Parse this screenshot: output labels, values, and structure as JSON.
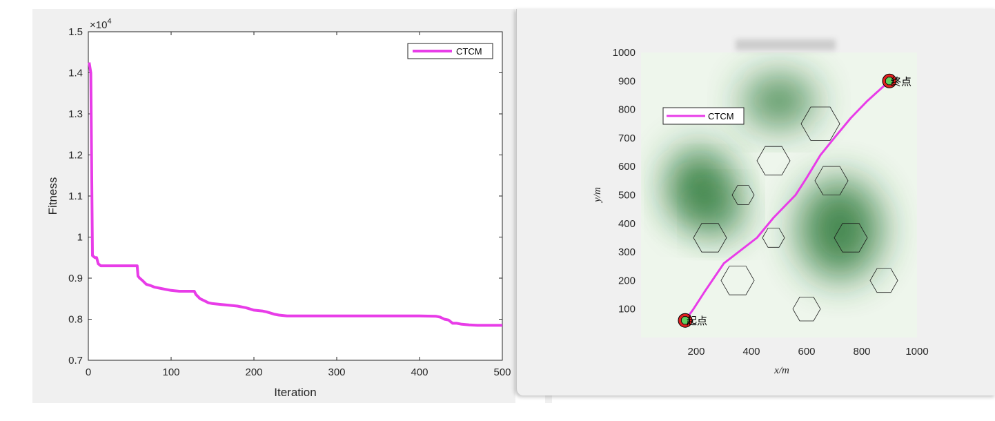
{
  "chart_data": [
    {
      "type": "line",
      "xlabel": "Iteration",
      "ylabel": "Fitness",
      "exponent_label": "×10",
      "exponent_power": "4",
      "xlim": [
        0,
        500
      ],
      "ylim": [
        0.7,
        1.5
      ],
      "xticks": [
        0,
        100,
        200,
        300,
        400,
        500
      ],
      "yticks": [
        0.7,
        0.8,
        0.9,
        1,
        1.1,
        1.2,
        1.3,
        1.4,
        1.5
      ],
      "ytick_labels": [
        "0.7",
        "0.8",
        "0.9",
        "1",
        "1.1",
        "1.2",
        "1.3",
        "1.4",
        "1.5"
      ],
      "legend_placement": "top-right",
      "series": [
        {
          "name": "CTCM",
          "color": "#e83ce8",
          "x": [
            1,
            3,
            5,
            8,
            10,
            12,
            15,
            25,
            40,
            55,
            59,
            60,
            62,
            65,
            70,
            75,
            80,
            90,
            100,
            110,
            128,
            130,
            135,
            140,
            145,
            150,
            160,
            170,
            180,
            190,
            195,
            200,
            210,
            215,
            220,
            225,
            230,
            240,
            260,
            300,
            350,
            400,
            420,
            425,
            430,
            435,
            440,
            445,
            450,
            460,
            470,
            480,
            490,
            500
          ],
          "y": [
            1.425,
            1.4,
            0.955,
            0.95,
            0.95,
            0.935,
            0.93,
            0.93,
            0.93,
            0.93,
            0.93,
            0.905,
            0.9,
            0.895,
            0.885,
            0.882,
            0.878,
            0.874,
            0.87,
            0.868,
            0.868,
            0.86,
            0.85,
            0.845,
            0.84,
            0.838,
            0.836,
            0.834,
            0.832,
            0.828,
            0.825,
            0.822,
            0.82,
            0.818,
            0.815,
            0.812,
            0.81,
            0.808,
            0.808,
            0.808,
            0.808,
            0.808,
            0.807,
            0.805,
            0.8,
            0.798,
            0.79,
            0.79,
            0.788,
            0.786,
            0.785,
            0.785,
            0.785,
            0.785
          ]
        }
      ]
    },
    {
      "type": "line",
      "title_obscured": true,
      "xlabel": "x/m",
      "ylabel": "y/m",
      "xlim": [
        0,
        1000
      ],
      "ylim": [
        0,
        1000
      ],
      "xticks": [
        200,
        400,
        600,
        800,
        1000
      ],
      "yticks": [
        100,
        200,
        300,
        400,
        500,
        600,
        700,
        800,
        900,
        1000
      ],
      "legend_placement": "top-left",
      "start_label": "起点",
      "end_label": "终点",
      "start_point": [
        160,
        60
      ],
      "end_point": [
        900,
        900
      ],
      "series": [
        {
          "name": "CTCM",
          "color": "#e83ce8",
          "x": [
            160,
            190,
            230,
            300,
            420,
            480,
            560,
            600,
            650,
            700,
            760,
            820,
            900
          ],
          "y": [
            60,
            100,
            160,
            260,
            350,
            420,
            500,
            560,
            640,
            700,
            770,
            830,
            900
          ]
        }
      ],
      "threats": [
        {
          "cx": 720,
          "cy": 380,
          "rx": 150,
          "ry": 175,
          "strength": 0.95
        },
        {
          "cx": 500,
          "cy": 830,
          "rx": 130,
          "ry": 90,
          "strength": 0.9
        },
        {
          "cx": 210,
          "cy": 550,
          "rx": 110,
          "ry": 120,
          "strength": 0.85
        },
        {
          "cx": 290,
          "cy": 430,
          "rx": 80,
          "ry": 80,
          "strength": 0.55
        },
        {
          "cx": 230,
          "cy": 480,
          "rx": 110,
          "ry": 100,
          "strength": 0.75
        }
      ],
      "obstacles": [
        {
          "cx": 650,
          "cy": 750,
          "r": 70
        },
        {
          "cx": 480,
          "cy": 620,
          "r": 60
        },
        {
          "cx": 690,
          "cy": 550,
          "r": 60
        },
        {
          "cx": 370,
          "cy": 500,
          "r": 40
        },
        {
          "cx": 250,
          "cy": 350,
          "r": 60
        },
        {
          "cx": 760,
          "cy": 350,
          "r": 60
        },
        {
          "cx": 480,
          "cy": 350,
          "r": 40
        },
        {
          "cx": 350,
          "cy": 200,
          "r": 60
        },
        {
          "cx": 880,
          "cy": 200,
          "r": 50
        },
        {
          "cx": 600,
          "cy": 100,
          "r": 50
        }
      ]
    }
  ]
}
